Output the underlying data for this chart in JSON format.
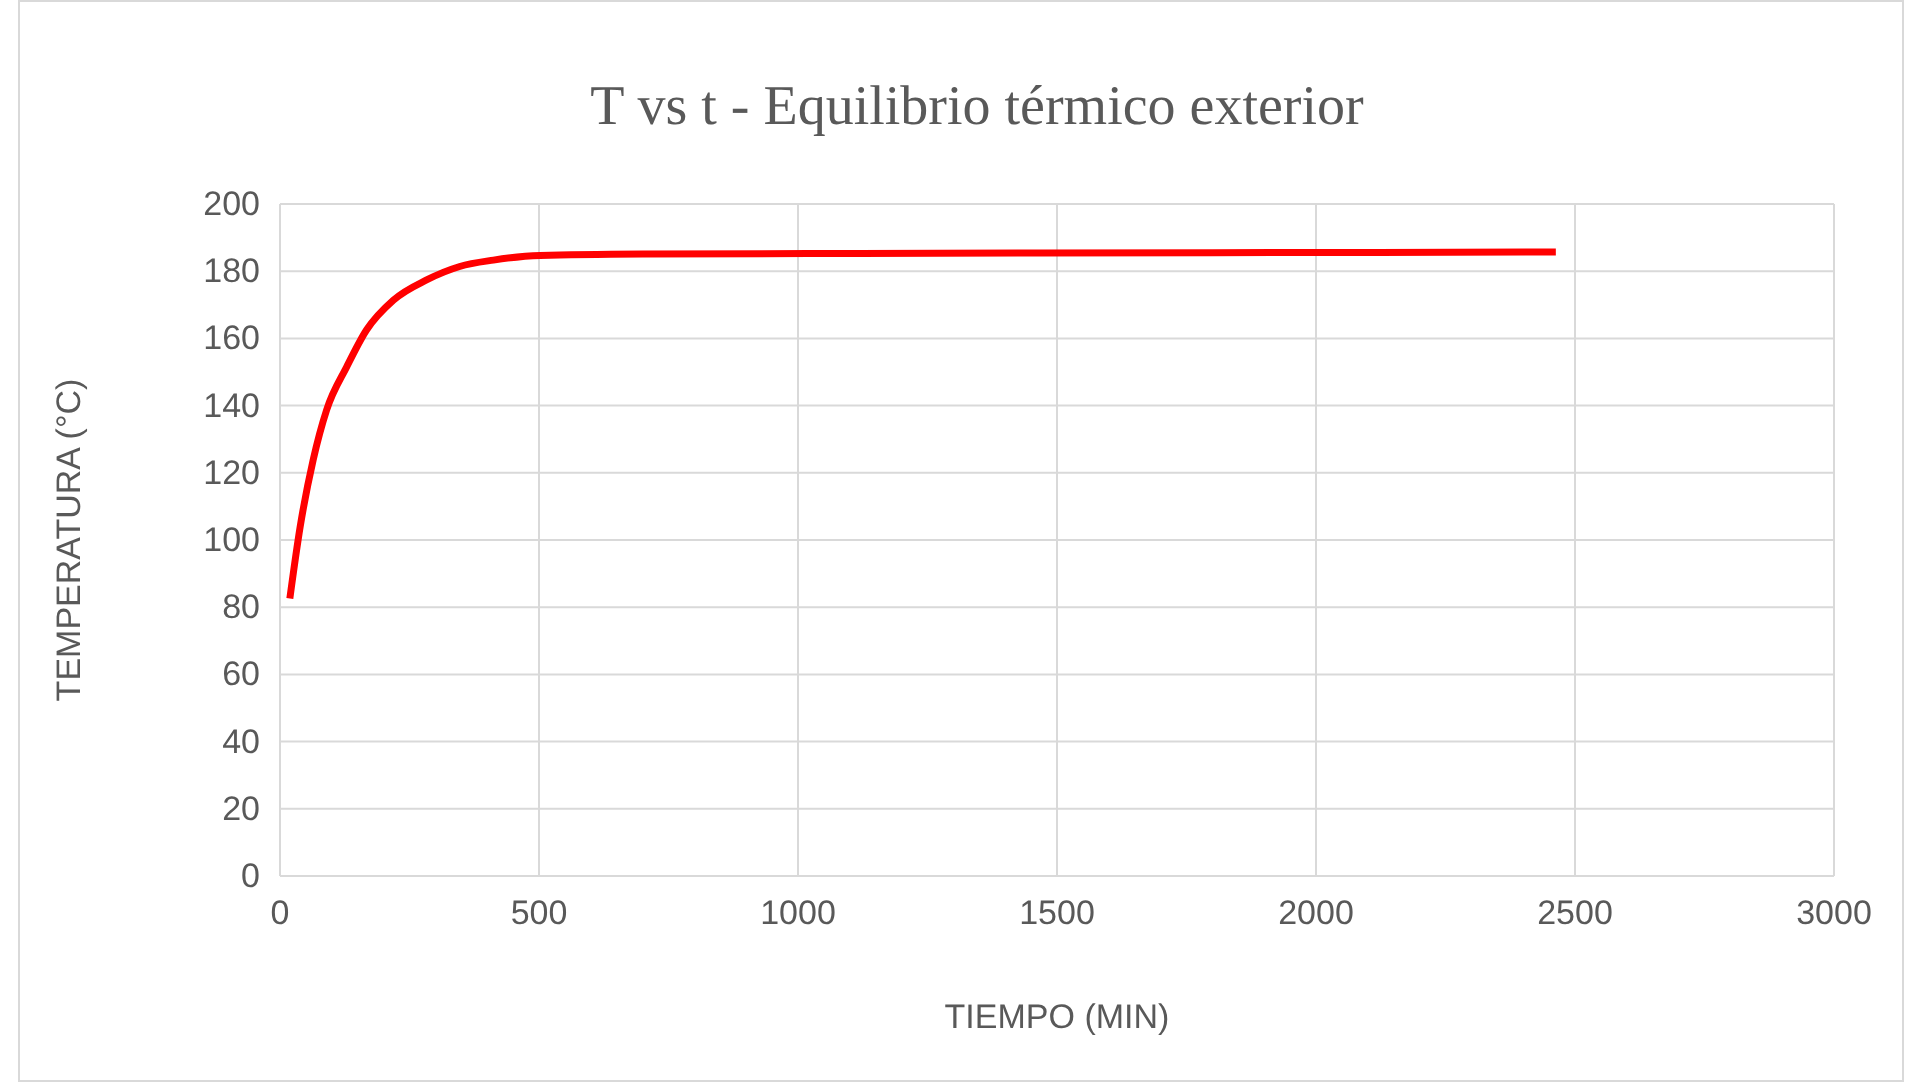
{
  "chart_data": {
    "type": "line",
    "title": "T vs t - Equilibrio térmico exterior",
    "xlabel": "TIEMPO (MIN)",
    "ylabel": "TEMPERATURA (°C)",
    "xlim": [
      0,
      3000
    ],
    "xticks": [
      0,
      500,
      1000,
      1500,
      2000,
      2500,
      3000
    ],
    "ylim": [
      0,
      200
    ],
    "yticks": [
      0,
      20,
      40,
      60,
      80,
      100,
      120,
      140,
      160,
      180,
      200
    ],
    "grid": true,
    "line_style": "solid",
    "series": [
      {
        "color": "#ff0000",
        "x": [
          19,
          39,
          64,
          90,
          129,
          167,
          219,
          283,
          347,
          412,
          502,
          700,
          1120,
          1800,
          2463
        ],
        "values": [
          82.6,
          104,
          123.8,
          138.7,
          151.6,
          162.5,
          171.4,
          177.4,
          181.4,
          183.3,
          184.7,
          185.1,
          185.3,
          185.5,
          185.7
        ]
      }
    ]
  }
}
